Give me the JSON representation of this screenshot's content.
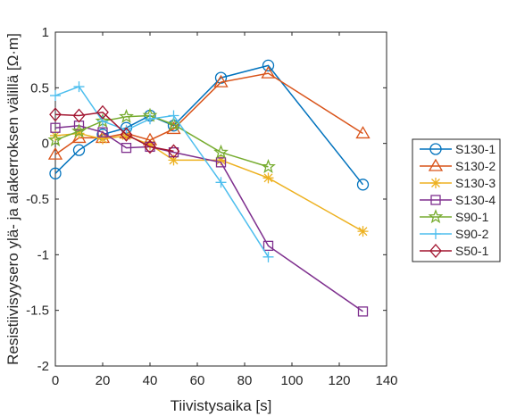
{
  "chart_data": {
    "type": "line",
    "xlabel": "Tiivistysaika [s]",
    "ylabel": "Resistiivisyysero ylä- ja alakerroksen välillä [Ω·m]",
    "xlim": [
      0,
      140
    ],
    "ylim": [
      -2,
      1
    ],
    "xticks": [
      "0",
      "20",
      "40",
      "60",
      "80",
      "100",
      "120",
      "140"
    ],
    "yticks": [
      "-2",
      "-1.5",
      "-1",
      "-0.5",
      "0",
      "0.5",
      "1"
    ],
    "xtick_values": [
      0,
      20,
      40,
      60,
      80,
      100,
      120,
      140
    ],
    "ytick_values": [
      -2,
      -1.5,
      -1,
      -0.5,
      0,
      0.5,
      1
    ],
    "grid": false,
    "legend_position": "right",
    "series": [
      {
        "name": "S130-1",
        "color": "#0072BD",
        "marker": "circle",
        "x": [
          0,
          10,
          20,
          30,
          40,
          50,
          70,
          90,
          130
        ],
        "y": [
          -0.27,
          -0.06,
          0.08,
          0.14,
          0.25,
          0.16,
          0.59,
          0.7,
          -0.37
        ]
      },
      {
        "name": "S130-2",
        "color": "#D95319",
        "marker": "triangle",
        "x": [
          0,
          10,
          20,
          30,
          40,
          50,
          70,
          90,
          130
        ],
        "y": [
          -0.1,
          0.05,
          0.05,
          0.09,
          0.03,
          0.13,
          0.55,
          0.63,
          0.09
        ]
      },
      {
        "name": "S130-3",
        "color": "#EDB120",
        "marker": "asterisk",
        "x": [
          0,
          10,
          20,
          30,
          40,
          50,
          70,
          90,
          130
        ],
        "y": [
          0.07,
          0.09,
          0.04,
          0.07,
          -0.01,
          -0.15,
          -0.15,
          -0.31,
          -0.79
        ]
      },
      {
        "name": "S130-4",
        "color": "#7E2F8E",
        "marker": "square",
        "x": [
          0,
          10,
          20,
          30,
          40,
          50,
          70,
          90,
          130
        ],
        "y": [
          0.14,
          0.16,
          0.1,
          -0.04,
          -0.03,
          -0.08,
          -0.17,
          -0.92,
          -1.51
        ]
      },
      {
        "name": "S90-1",
        "color": "#77AC30",
        "marker": "star",
        "x": [
          0,
          10,
          20,
          30,
          40,
          50,
          70,
          90
        ],
        "y": [
          0.03,
          0.11,
          0.2,
          0.24,
          0.25,
          0.17,
          -0.08,
          -0.21
        ]
      },
      {
        "name": "S90-2",
        "color": "#4DBEEE",
        "marker": "plus",
        "x": [
          0,
          10,
          20,
          30,
          40,
          50,
          70,
          90
        ],
        "y": [
          0.43,
          0.51,
          0.2,
          0.12,
          0.22,
          0.25,
          -0.35,
          -1.02
        ]
      },
      {
        "name": "S50-1",
        "color": "#A2142F",
        "marker": "diamond",
        "x": [
          0,
          10,
          20,
          30,
          40,
          50
        ],
        "y": [
          0.26,
          0.25,
          0.28,
          0.08,
          -0.03,
          -0.07
        ]
      }
    ]
  }
}
